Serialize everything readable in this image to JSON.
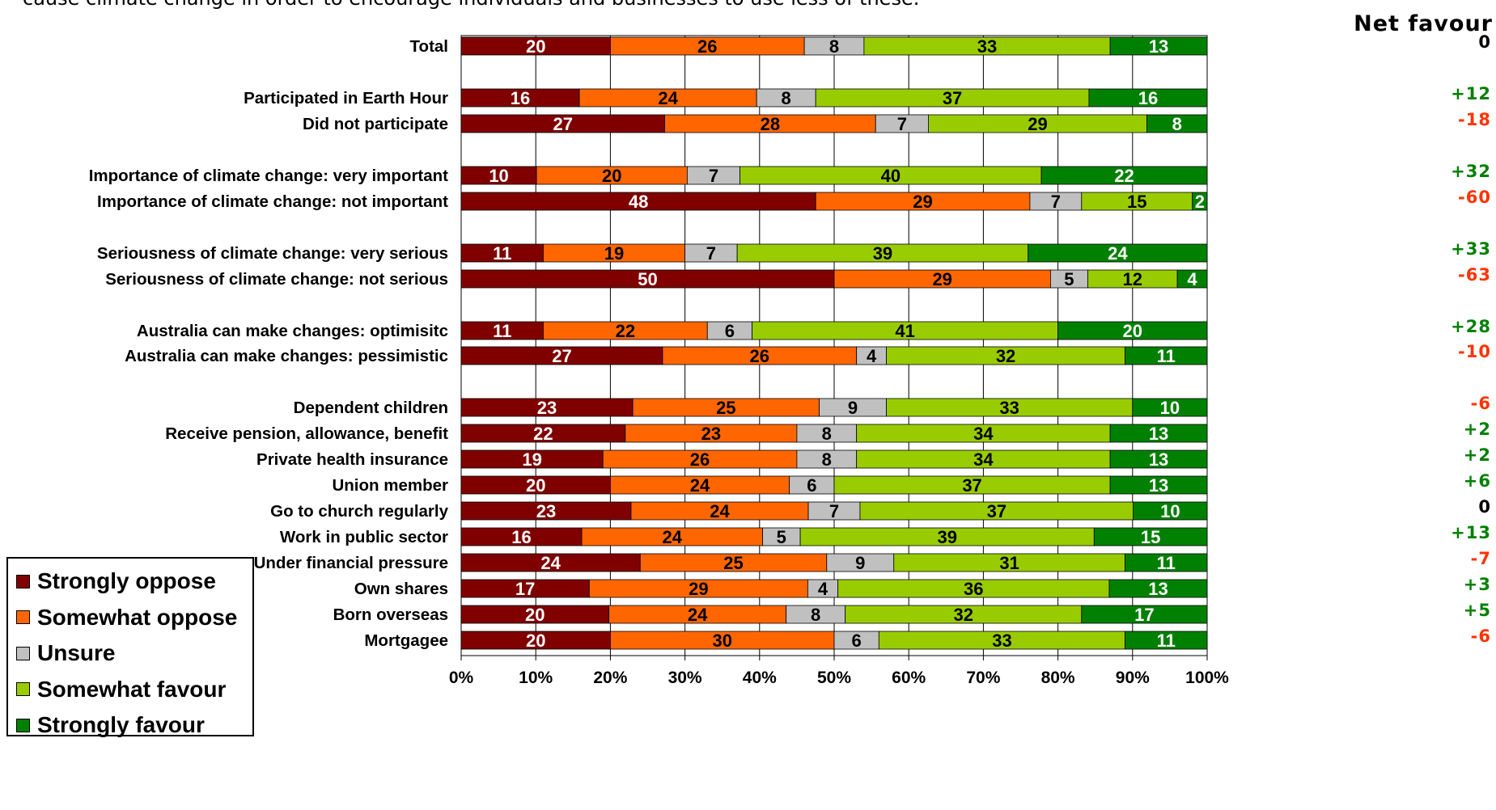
{
  "header_text": "cause climate change in order to encourage individuals and businesses to use less of these.",
  "net_header": "Net favour",
  "colors": {
    "strongly_oppose": "#800000",
    "somewhat_oppose": "#ff6600",
    "unsure": "#c0c0c0",
    "somewhat_favour": "#99cc00",
    "strongly_favour": "#008000",
    "net_positive": "#008000",
    "net_negative": "#ff3300",
    "net_zero": "#000000"
  },
  "legend": [
    {
      "label": "Strongly oppose",
      "color": "#800000"
    },
    {
      "label": "Somewhat oppose",
      "color": "#ff6600"
    },
    {
      "label": "Unsure",
      "color": "#c0c0c0"
    },
    {
      "label": "Somewhat favour",
      "color": "#99cc00"
    },
    {
      "label": "Strongly favour",
      "color": "#008000"
    }
  ],
  "chart_data": {
    "type": "bar",
    "orientation": "horizontal",
    "stacked": "percent",
    "xlim": [
      0,
      100
    ],
    "x_ticks": [
      "0%",
      "10%",
      "20%",
      "30%",
      "40%",
      "50%",
      "60%",
      "70%",
      "80%",
      "90%",
      "100%"
    ],
    "grid": "vertical",
    "legend_position": "bottom-left",
    "series_names": [
      "Strongly oppose",
      "Somewhat oppose",
      "Unsure",
      "Somewhat favour",
      "Strongly favour"
    ],
    "rows": [
      {
        "label": "Total",
        "values": [
          20,
          26,
          8,
          33,
          13
        ],
        "net": "0"
      },
      {
        "label": "Participated in Earth Hour",
        "values": [
          16,
          24,
          8,
          37,
          16
        ],
        "net": "+12"
      },
      {
        "label": "Did not participate",
        "values": [
          27,
          28,
          7,
          29,
          8
        ],
        "net": "-18"
      },
      {
        "label": "Importance of climate change: very important",
        "values": [
          10,
          20,
          7,
          40,
          22
        ],
        "net": "+32"
      },
      {
        "label": "Importance of climate change: not important",
        "values": [
          48,
          29,
          7,
          15,
          2
        ],
        "net": "-60"
      },
      {
        "label": "Seriousness of climate change: very serious",
        "values": [
          11,
          19,
          7,
          39,
          24
        ],
        "net": "+33"
      },
      {
        "label": "Seriousness of climate change: not serious",
        "values": [
          50,
          29,
          5,
          12,
          4
        ],
        "net": "-63"
      },
      {
        "label": "Australia can make changes: optimisitc",
        "values": [
          11,
          22,
          6,
          41,
          20
        ],
        "net": "+28"
      },
      {
        "label": "Australia can make changes: pessimistic",
        "values": [
          27,
          26,
          4,
          32,
          11
        ],
        "net": "-10"
      },
      {
        "label": "Dependent children",
        "values": [
          23,
          25,
          9,
          33,
          10
        ],
        "net": "-6"
      },
      {
        "label": "Receive pension, allowance, benefit",
        "values": [
          22,
          23,
          8,
          34,
          13
        ],
        "net": "+2"
      },
      {
        "label": "Private health insurance",
        "values": [
          19,
          26,
          8,
          34,
          13
        ],
        "net": "+2"
      },
      {
        "label": "Union member",
        "values": [
          20,
          24,
          6,
          37,
          13
        ],
        "net": "+6"
      },
      {
        "label": "Go to church regularly",
        "values": [
          23,
          24,
          7,
          37,
          10
        ],
        "net": "0"
      },
      {
        "label": "Work in public sector",
        "values": [
          16,
          24,
          5,
          39,
          15
        ],
        "net": "+13"
      },
      {
        "label": "Under financial pressure",
        "values": [
          24,
          25,
          9,
          31,
          11
        ],
        "net": "-7"
      },
      {
        "label": "Own shares",
        "values": [
          17,
          29,
          4,
          36,
          13
        ],
        "net": "+3"
      },
      {
        "label": "Born overseas",
        "values": [
          20,
          24,
          8,
          32,
          17
        ],
        "net": "+5"
      },
      {
        "label": "Mortgagee",
        "values": [
          20,
          30,
          6,
          33,
          11
        ],
        "net": "-6"
      }
    ]
  }
}
